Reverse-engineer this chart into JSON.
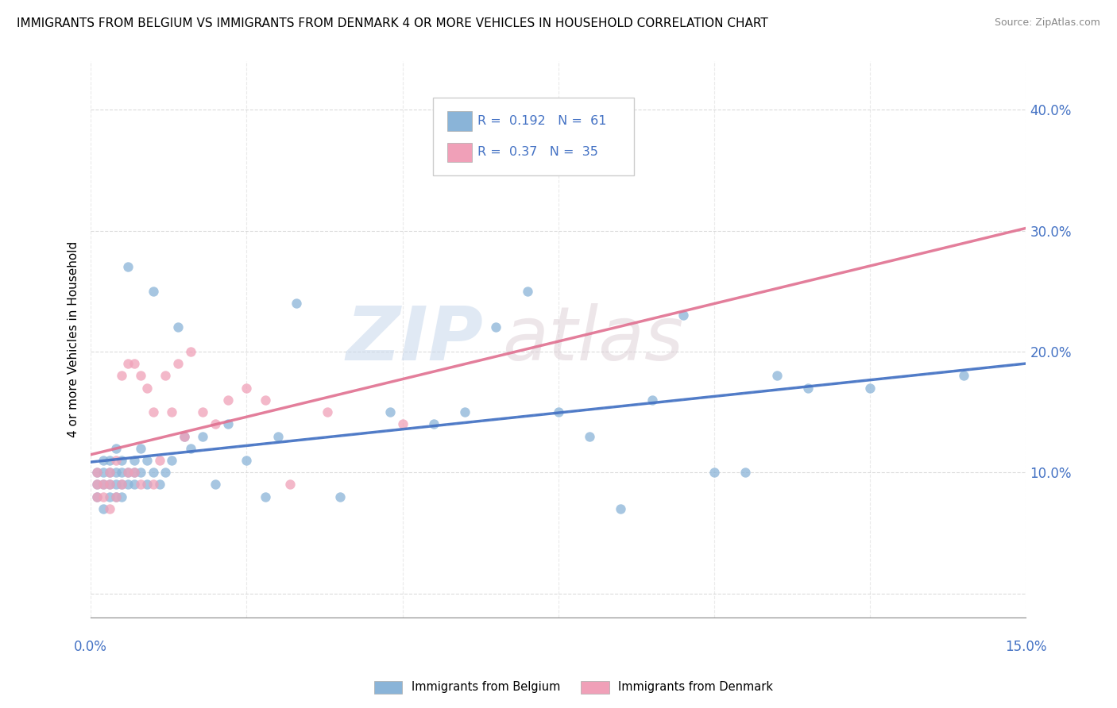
{
  "title": "IMMIGRANTS FROM BELGIUM VS IMMIGRANTS FROM DENMARK 4 OR MORE VEHICLES IN HOUSEHOLD CORRELATION CHART",
  "source": "Source: ZipAtlas.com",
  "ylabel": "4 or more Vehicles in Household",
  "y_tick_labels": [
    "",
    "10.0%",
    "20.0%",
    "30.0%",
    "40.0%"
  ],
  "y_tick_values": [
    0.0,
    0.1,
    0.2,
    0.3,
    0.4
  ],
  "xlim": [
    0.0,
    0.15
  ],
  "ylim": [
    -0.02,
    0.44
  ],
  "legend_label1": "Immigrants from Belgium",
  "legend_label2": "Immigrants from Denmark",
  "R1": 0.192,
  "N1": 61,
  "R2": 0.37,
  "N2": 35,
  "color_belgium": "#8ab4d8",
  "color_denmark": "#f0a0b8",
  "color_belgium_line": "#4472c4",
  "color_denmark_line": "#e07090",
  "watermark_zip": "ZIP",
  "watermark_atlas": "atlas",
  "belgium_scatter_x": [
    0.001,
    0.001,
    0.001,
    0.002,
    0.002,
    0.002,
    0.002,
    0.003,
    0.003,
    0.003,
    0.003,
    0.004,
    0.004,
    0.004,
    0.004,
    0.005,
    0.005,
    0.005,
    0.005,
    0.006,
    0.006,
    0.006,
    0.007,
    0.007,
    0.007,
    0.008,
    0.008,
    0.009,
    0.009,
    0.01,
    0.01,
    0.011,
    0.012,
    0.013,
    0.014,
    0.015,
    0.016,
    0.018,
    0.02,
    0.022,
    0.025,
    0.028,
    0.03,
    0.033,
    0.04,
    0.048,
    0.055,
    0.065,
    0.075,
    0.085,
    0.095,
    0.105,
    0.115,
    0.125,
    0.06,
    0.07,
    0.08,
    0.09,
    0.1,
    0.11,
    0.14
  ],
  "belgium_scatter_y": [
    0.08,
    0.09,
    0.1,
    0.07,
    0.09,
    0.1,
    0.11,
    0.08,
    0.09,
    0.1,
    0.11,
    0.08,
    0.09,
    0.1,
    0.12,
    0.09,
    0.1,
    0.11,
    0.08,
    0.09,
    0.1,
    0.27,
    0.09,
    0.1,
    0.11,
    0.1,
    0.12,
    0.09,
    0.11,
    0.1,
    0.25,
    0.09,
    0.1,
    0.11,
    0.22,
    0.13,
    0.12,
    0.13,
    0.09,
    0.14,
    0.11,
    0.08,
    0.13,
    0.24,
    0.08,
    0.15,
    0.14,
    0.22,
    0.15,
    0.07,
    0.23,
    0.1,
    0.17,
    0.17,
    0.15,
    0.25,
    0.13,
    0.16,
    0.1,
    0.18,
    0.18
  ],
  "denmark_scatter_x": [
    0.001,
    0.001,
    0.001,
    0.002,
    0.002,
    0.003,
    0.003,
    0.003,
    0.004,
    0.004,
    0.005,
    0.005,
    0.006,
    0.006,
    0.007,
    0.007,
    0.008,
    0.008,
    0.009,
    0.01,
    0.01,
    0.011,
    0.012,
    0.013,
    0.014,
    0.015,
    0.016,
    0.018,
    0.02,
    0.022,
    0.025,
    0.028,
    0.032,
    0.038,
    0.05
  ],
  "denmark_scatter_y": [
    0.08,
    0.09,
    0.1,
    0.08,
    0.09,
    0.07,
    0.09,
    0.1,
    0.08,
    0.11,
    0.09,
    0.18,
    0.1,
    0.19,
    0.1,
    0.19,
    0.09,
    0.18,
    0.17,
    0.09,
    0.15,
    0.11,
    0.18,
    0.15,
    0.19,
    0.13,
    0.2,
    0.15,
    0.14,
    0.16,
    0.17,
    0.16,
    0.09,
    0.15,
    0.14
  ]
}
